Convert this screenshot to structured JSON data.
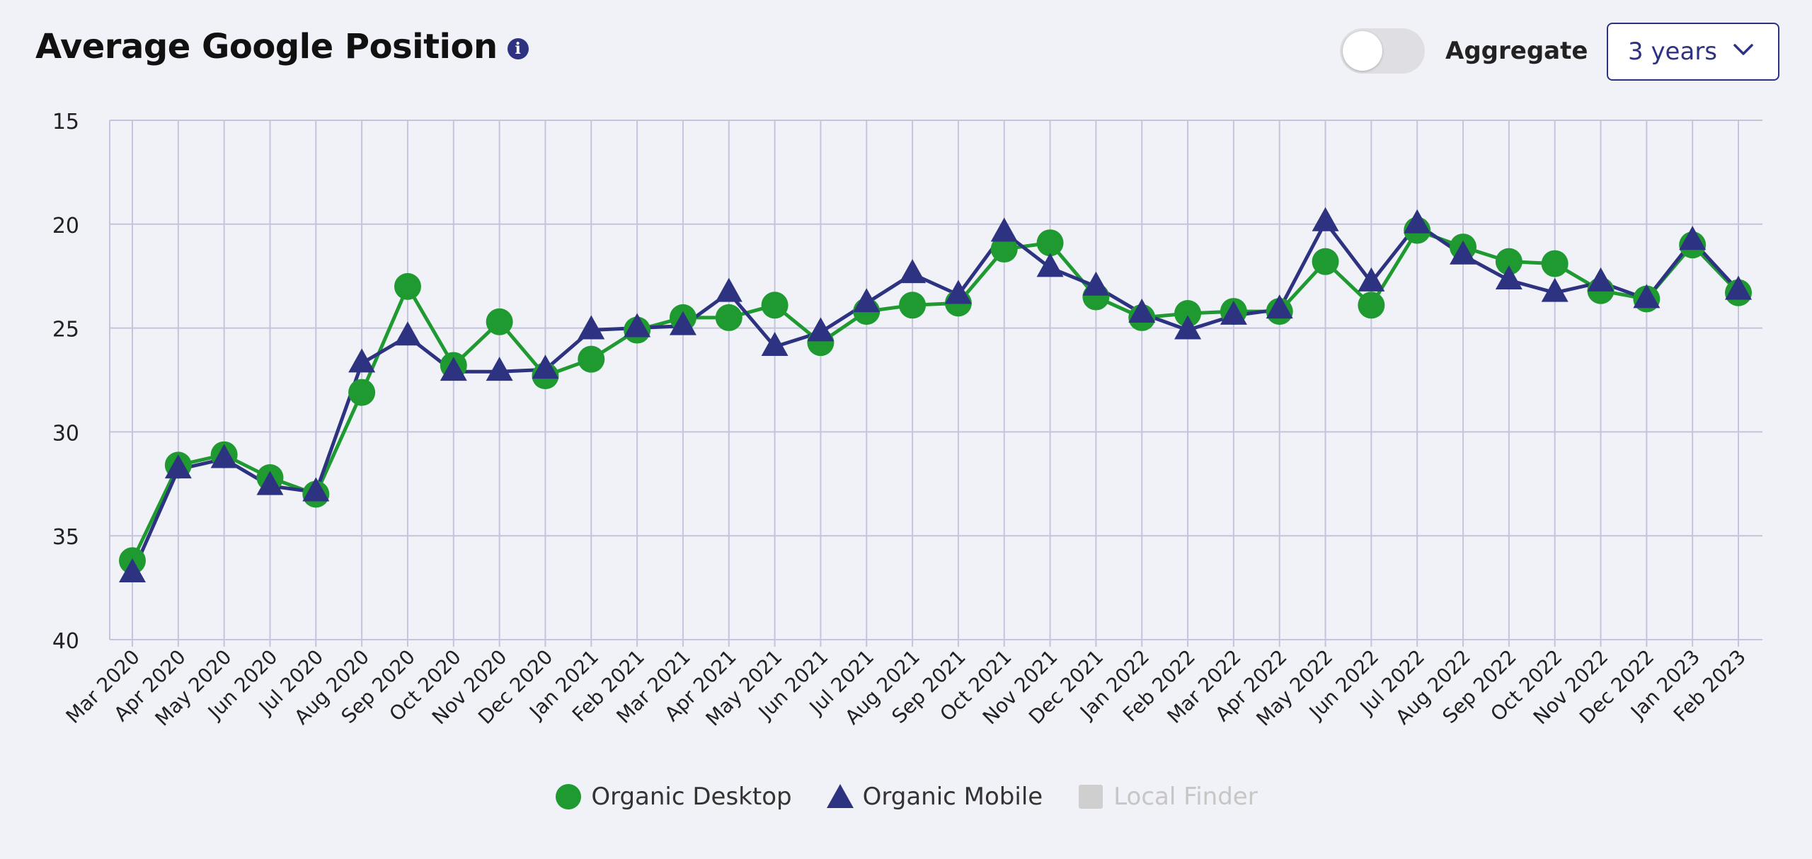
{
  "header": {
    "title": "Average Google Position",
    "info_icon": "info-icon",
    "toggle_label": "Aggregate",
    "toggle_on": false,
    "range_selected": "3 years",
    "dropdown_icon": "chevron-down-icon"
  },
  "colors": {
    "desktop": "#1e9a30",
    "mobile": "#2e3381",
    "disabled": "#cfcfcf",
    "grid": "#c4c4dc",
    "background": "#f1f1f8"
  },
  "chart_data": {
    "type": "line",
    "title": "Average Google Position",
    "y_inverted": true,
    "ylim": [
      15,
      40
    ],
    "yticks": [
      15,
      20,
      25,
      30,
      35,
      40
    ],
    "grid": true,
    "legend_position": "bottom-center",
    "categories": [
      "Mar 2020",
      "Apr 2020",
      "May 2020",
      "Jun 2020",
      "Jul 2020",
      "Aug 2020",
      "Sep 2020",
      "Oct 2020",
      "Nov 2020",
      "Dec 2020",
      "Jan 2021",
      "Feb 2021",
      "Mar 2021",
      "Apr 2021",
      "May 2021",
      "Jun 2021",
      "Jul 2021",
      "Aug 2021",
      "Sep 2021",
      "Oct 2021",
      "Nov 2021",
      "Dec 2021",
      "Jan 2022",
      "Feb 2022",
      "Mar 2022",
      "Apr 2022",
      "May 2022",
      "Jun 2022",
      "Jul 2022",
      "Aug 2022",
      "Sep 2022",
      "Oct 2022",
      "Nov 2022",
      "Dec 2022",
      "Jan 2023",
      "Feb 2023"
    ],
    "series": [
      {
        "name": "Organic Desktop",
        "marker": "circle",
        "values": [
          36.2,
          31.6,
          31.1,
          32.2,
          33.0,
          28.1,
          23.0,
          26.8,
          24.7,
          27.3,
          26.5,
          25.1,
          24.5,
          24.5,
          23.9,
          25.7,
          24.2,
          23.9,
          23.8,
          21.2,
          20.9,
          23.5,
          24.5,
          24.3,
          24.2,
          24.2,
          21.8,
          23.9,
          20.3,
          21.1,
          21.8,
          21.9,
          23.2,
          23.6,
          21.0,
          23.3
        ]
      },
      {
        "name": "Organic Mobile",
        "marker": "triangle",
        "values": [
          36.8,
          31.8,
          31.3,
          32.6,
          32.9,
          26.7,
          25.4,
          27.1,
          27.1,
          27.0,
          25.1,
          25.0,
          24.9,
          23.3,
          25.9,
          25.2,
          23.8,
          22.4,
          23.4,
          20.4,
          22.1,
          23.0,
          24.3,
          25.1,
          24.4,
          24.1,
          19.9,
          22.8,
          20.0,
          21.5,
          22.7,
          23.3,
          22.8,
          23.6,
          20.8,
          23.2
        ]
      }
    ],
    "legend": [
      {
        "name": "Organic Desktop",
        "marker": "circle",
        "enabled": true
      },
      {
        "name": "Organic Mobile",
        "marker": "triangle",
        "enabled": true
      },
      {
        "name": "Local Finder",
        "marker": "square",
        "enabled": false
      }
    ]
  }
}
